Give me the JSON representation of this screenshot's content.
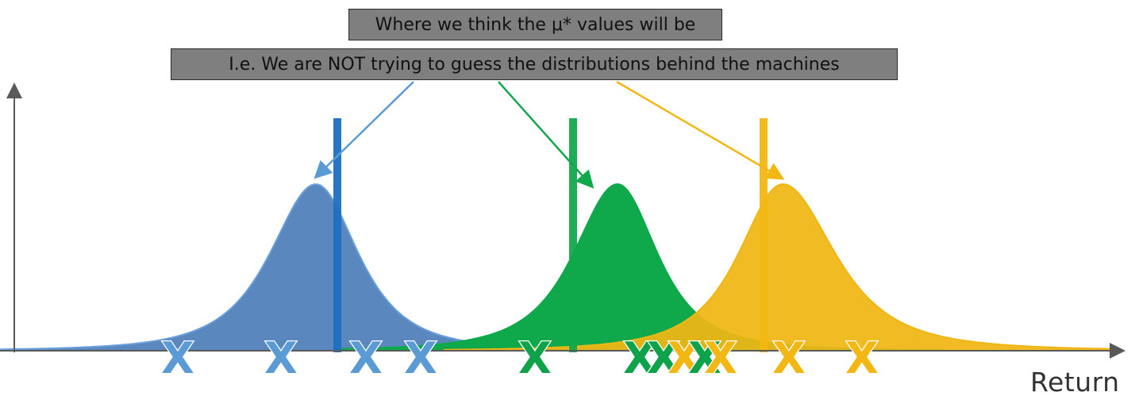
{
  "callouts": {
    "main": "Where we think the μ* values will be",
    "note": "I.e. We are NOT trying to guess the distributions behind the machines"
  },
  "axis": {
    "x_label": "Return"
  },
  "marker_glyph": "X",
  "colors": {
    "blue_fill": "#5b87bf",
    "blue_edge": "#6aa1dc",
    "blue_line": "#1f6fc2",
    "blue_x": "#5b9bd5",
    "green_fill": "#0fa94c",
    "green_x": "#0ea24a",
    "green_line": "#12a84c",
    "yellow_fill": "#f0b613",
    "yellow_x": "#f2b713",
    "yellow_line": "#f2b713",
    "axis": "#595959",
    "callout_bg": "#7f7f7f"
  }
}
